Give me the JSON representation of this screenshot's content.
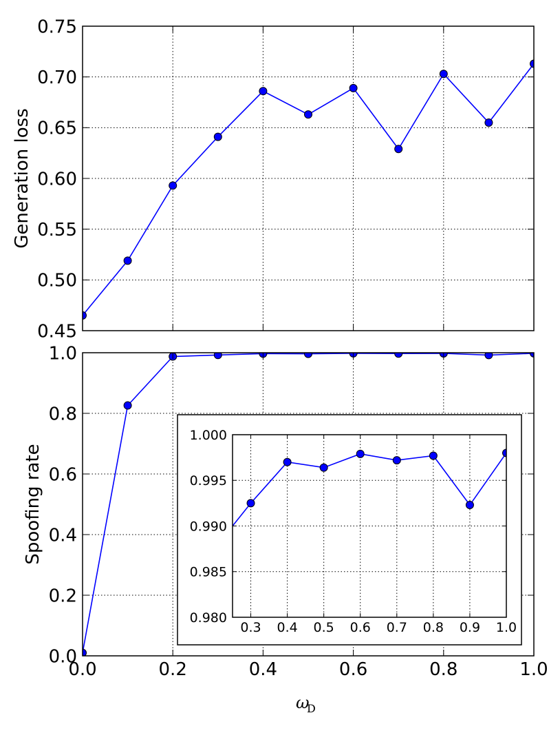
{
  "chart_data": [
    {
      "id": "top",
      "type": "line",
      "ylabel": "Generation loss",
      "ylim": [
        0.45,
        0.75
      ],
      "xlim": [
        0.0,
        1.0
      ],
      "yticks": [
        "0.45",
        "0.50",
        "0.55",
        "0.60",
        "0.65",
        "0.70",
        "0.75"
      ],
      "grid": true,
      "line_color": "#0000ff",
      "marker_color": "#0000ff",
      "series": [
        {
          "x": [
            0.0,
            0.1,
            0.2,
            0.3,
            0.4,
            0.5,
            0.6,
            0.7,
            0.8,
            0.9,
            1.0
          ],
          "y": [
            0.465,
            0.519,
            0.593,
            0.641,
            0.686,
            0.663,
            0.689,
            0.629,
            0.703,
            0.655,
            0.713
          ]
        }
      ]
    },
    {
      "id": "bottom",
      "type": "line",
      "ylabel": "Spoofing rate",
      "xlabel_symbol": "ω",
      "xlabel_subscript": "D",
      "ylim": [
        0.0,
        1.0
      ],
      "xlim": [
        0.0,
        1.0
      ],
      "xticks": [
        "0.0",
        "0.2",
        "0.4",
        "0.6",
        "0.8",
        "1.0"
      ],
      "yticks": [
        "0.0",
        "0.2",
        "0.4",
        "0.6",
        "0.8",
        "1.0"
      ],
      "grid": true,
      "line_color": "#0000ff",
      "marker_color": "#0000ff",
      "series": [
        {
          "x": [
            0.0,
            0.1,
            0.2,
            0.3,
            0.4,
            0.5,
            0.6,
            0.7,
            0.8,
            0.9,
            1.0
          ],
          "y": [
            0.01,
            0.826,
            0.9875,
            0.9925,
            0.997,
            0.9964,
            0.9979,
            0.9972,
            0.9977,
            0.9923,
            0.998
          ]
        }
      ]
    },
    {
      "id": "inset",
      "type": "line",
      "ylim": [
        0.98,
        1.0
      ],
      "xlim": [
        0.25,
        1.0
      ],
      "xticks": [
        "0.3",
        "0.4",
        "0.5",
        "0.6",
        "0.7",
        "0.8",
        "0.9",
        "1.0"
      ],
      "yticks": [
        "0.980",
        "0.985",
        "0.990",
        "0.995",
        "1.000"
      ],
      "grid": true,
      "line_color": "#0000ff",
      "marker_color": "#0000ff",
      "series": [
        {
          "x": [
            0.2,
            0.3,
            0.4,
            0.5,
            0.6,
            0.7,
            0.8,
            0.9,
            1.0
          ],
          "y": [
            0.9875,
            0.9925,
            0.997,
            0.9964,
            0.9979,
            0.9972,
            0.9977,
            0.9923,
            0.998
          ],
          "marker_from_index": 1
        }
      ]
    }
  ]
}
